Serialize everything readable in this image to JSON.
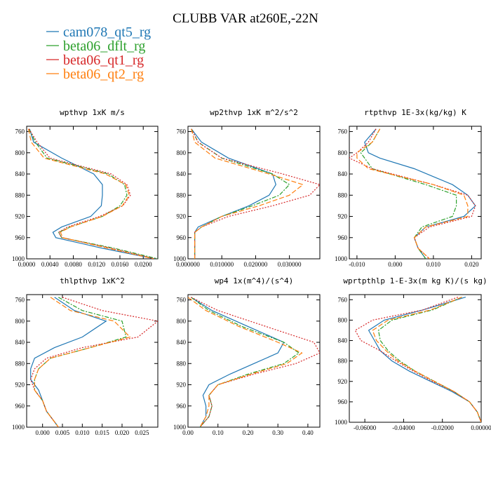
{
  "figure_title": "CLUBB VAR at260E,-22N",
  "colors": {
    "cam078_qt5_rg": "#1f77b4",
    "beta06_dflt_rg": "#2ca02c",
    "beta06_qt1_rg": "#d62728",
    "beta06_qt2_rg": "#ff7f0e"
  },
  "legend": [
    {
      "label": "cam078_qt5_rg",
      "color": "#1f77b4"
    },
    {
      "label": "beta06_dflt_rg",
      "color": "#2ca02c"
    },
    {
      "label": "beta06_qt1_rg",
      "color": "#d62728"
    },
    {
      "label": "beta06_qt2_rg",
      "color": "#ff7f0e"
    }
  ],
  "chart_data": [
    {
      "type": "line",
      "title": "wpthvp  1xK m/s",
      "ylim": [
        1000,
        750
      ],
      "xlim": [
        0,
        0.0225
      ],
      "xticks": [
        "0.0000",
        "0.0040",
        "0.0080",
        "0.0120",
        "0.0160",
        "0.0200"
      ],
      "xtick_values": [
        0,
        0.004,
        0.008,
        0.012,
        0.016,
        0.02
      ],
      "yticks": [
        760,
        800,
        840,
        880,
        920,
        960,
        1000
      ],
      "y": [
        755,
        780,
        810,
        840,
        860,
        880,
        900,
        920,
        940,
        950,
        960,
        980,
        1000
      ],
      "series": [
        {
          "name": "cam078_qt5_rg",
          "values": [
            0.0005,
            0.0012,
            0.006,
            0.0115,
            0.013,
            0.013,
            0.0128,
            0.011,
            0.006,
            0.0045,
            0.005,
            0.013,
            0.022
          ]
        },
        {
          "name": "beta06_dflt_rg",
          "values": [
            0.0004,
            0.0015,
            0.0035,
            0.014,
            0.0168,
            0.0172,
            0.016,
            0.013,
            0.0075,
            0.0055,
            0.006,
            0.015,
            0.0225
          ]
        },
        {
          "name": "beta06_qt1_rg",
          "values": [
            0.0004,
            0.0018,
            0.004,
            0.0145,
            0.0172,
            0.0178,
            0.0165,
            0.0125,
            0.007,
            0.0055,
            0.006,
            0.0145,
            0.022
          ]
        },
        {
          "name": "beta06_qt2_rg",
          "values": [
            0.0003,
            0.0008,
            0.003,
            0.0135,
            0.017,
            0.0176,
            0.0164,
            0.013,
            0.0075,
            0.0058,
            0.0062,
            0.014,
            0.0218
          ]
        }
      ]
    },
    {
      "type": "line",
      "title": "wp2thvp  1xK m^2/s^2",
      "ylim": [
        1000,
        750
      ],
      "xlim": [
        0,
        0.039
      ],
      "xticks": [
        "0.000000",
        "0.010000",
        "0.020000",
        "0.030000"
      ],
      "xtick_values": [
        0,
        0.01,
        0.02,
        0.03
      ],
      "yticks": [
        760,
        800,
        840,
        880,
        920,
        960,
        1000
      ],
      "y": [
        755,
        780,
        810,
        840,
        860,
        880,
        900,
        920,
        940,
        950,
        960,
        980,
        1000
      ],
      "series": [
        {
          "name": "cam078_qt5_rg",
          "values": [
            0.001,
            0.004,
            0.012,
            0.025,
            0.026,
            0.024,
            0.018,
            0.01,
            0.003,
            0.002,
            0.002,
            0.002,
            0.002
          ]
        },
        {
          "name": "beta06_dflt_rg",
          "values": [
            0.001,
            0.003,
            0.01,
            0.025,
            0.03,
            0.027,
            0.019,
            0.01,
            0.004,
            0.002,
            0.002,
            0.002,
            0.002
          ]
        },
        {
          "name": "beta06_qt1_rg",
          "values": [
            0.001,
            0.003,
            0.01,
            0.028,
            0.039,
            0.036,
            0.025,
            0.012,
            0.004,
            0.002,
            0.002,
            0.002,
            0.002
          ]
        },
        {
          "name": "beta06_qt2_rg",
          "values": [
            0.001,
            0.002,
            0.008,
            0.024,
            0.034,
            0.03,
            0.021,
            0.01,
            0.004,
            0.002,
            0.002,
            0.002,
            0.002
          ]
        }
      ]
    },
    {
      "type": "line",
      "title": "rtpthvp  1E-3x(kg/kg) K",
      "ylim": [
        1000,
        750
      ],
      "xlim": [
        -0.012,
        0.0225
      ],
      "xticks": [
        "-0.010",
        "0.000",
        "0.010",
        "0.020"
      ],
      "xtick_values": [
        -0.01,
        0,
        0.01,
        0.02
      ],
      "yticks": [
        760,
        800,
        840,
        880,
        920,
        960,
        1000
      ],
      "y": [
        755,
        780,
        800,
        810,
        830,
        860,
        880,
        900,
        920,
        940,
        960,
        980,
        1000
      ],
      "series": [
        {
          "name": "cam078_qt5_rg",
          "values": [
            -0.005,
            -0.008,
            -0.007,
            -0.004,
            0.005,
            0.015,
            0.019,
            0.021,
            0.018,
            0.008,
            0.005,
            0.006,
            0.008
          ]
        },
        {
          "name": "beta06_dflt_rg",
          "values": [
            -0.004,
            -0.006,
            -0.009,
            -0.008,
            -0.006,
            0.008,
            0.016,
            0.016,
            0.015,
            0.007,
            0.005,
            0.006,
            0.008
          ]
        },
        {
          "name": "beta06_qt1_rg",
          "values": [
            -0.005,
            -0.007,
            -0.01,
            -0.012,
            -0.006,
            0.01,
            0.019,
            0.021,
            0.02,
            0.009,
            0.005,
            0.006,
            0.009
          ]
        },
        {
          "name": "beta06_qt2_rg",
          "values": [
            -0.004,
            -0.006,
            -0.01,
            -0.01,
            -0.007,
            0.01,
            0.018,
            0.019,
            0.019,
            0.008,
            0.005,
            0.006,
            0.009
          ]
        }
      ]
    },
    {
      "type": "line",
      "title": "thlpthvp  1xK^2",
      "ylim": [
        1000,
        750
      ],
      "xlim": [
        -0.004,
        0.029
      ],
      "xticks": [
        "0.000",
        "0.005",
        "0.010",
        "0.015",
        "0.020",
        "0.025"
      ],
      "xtick_values": [
        0,
        0.005,
        0.01,
        0.015,
        0.02,
        0.025
      ],
      "yticks": [
        760,
        800,
        840,
        880,
        920,
        960,
        1000
      ],
      "y": [
        755,
        780,
        800,
        830,
        850,
        870,
        890,
        910,
        930,
        950,
        970,
        990,
        1000
      ],
      "series": [
        {
          "name": "cam078_qt5_rg",
          "values": [
            0.003,
            0.008,
            0.016,
            0.01,
            0.003,
            -0.002,
            -0.003,
            -0.003,
            -0.001,
            0.0,
            0.001,
            0.003,
            0.004
          ]
        },
        {
          "name": "beta06_dflt_rg",
          "values": [
            0.004,
            0.01,
            0.02,
            0.021,
            0.012,
            0.002,
            -0.001,
            -0.002,
            -0.002,
            0.0,
            0.001,
            0.003,
            0.004
          ]
        },
        {
          "name": "beta06_qt1_rg",
          "values": [
            0.005,
            0.015,
            0.029,
            0.024,
            0.01,
            0.001,
            -0.002,
            -0.003,
            -0.002,
            0.0,
            0.001,
            0.003,
            0.004
          ]
        },
        {
          "name": "beta06_qt2_rg",
          "values": [
            0.002,
            0.007,
            0.018,
            0.022,
            0.012,
            0.002,
            -0.001,
            -0.002,
            -0.002,
            0.0,
            0.001,
            0.003,
            0.004
          ]
        }
      ]
    },
    {
      "type": "line",
      "title": "wp4  1x(m^4)/(s^4)",
      "ylim": [
        1000,
        750
      ],
      "xlim": [
        0,
        0.44
      ],
      "xticks": [
        "0.00",
        "0.10",
        "0.20",
        "0.30",
        "0.40"
      ],
      "xtick_values": [
        0,
        0.1,
        0.2,
        0.3,
        0.4
      ],
      "yticks": [
        760,
        800,
        840,
        880,
        920,
        960,
        1000
      ],
      "y": [
        755,
        780,
        810,
        840,
        860,
        880,
        900,
        920,
        940,
        960,
        980,
        1000
      ],
      "series": [
        {
          "name": "cam078_qt5_rg",
          "values": [
            0.01,
            0.08,
            0.2,
            0.32,
            0.3,
            0.22,
            0.14,
            0.07,
            0.05,
            0.06,
            0.06,
            0.04
          ]
        },
        {
          "name": "beta06_dflt_rg",
          "values": [
            0.01,
            0.07,
            0.18,
            0.32,
            0.37,
            0.32,
            0.2,
            0.1,
            0.07,
            0.08,
            0.07,
            0.04
          ]
        },
        {
          "name": "beta06_qt1_rg",
          "values": [
            0.01,
            0.1,
            0.26,
            0.42,
            0.44,
            0.36,
            0.22,
            0.1,
            0.07,
            0.08,
            0.07,
            0.04
          ]
        },
        {
          "name": "beta06_qt2_rg",
          "values": [
            0.0,
            0.06,
            0.17,
            0.3,
            0.38,
            0.33,
            0.21,
            0.1,
            0.07,
            0.07,
            0.06,
            0.04
          ]
        }
      ]
    },
    {
      "type": "line",
      "title": "wprtpthlp  1-E-3x(m kg K)/(s kg)",
      "ylim": [
        1000,
        750
      ],
      "xlim": [
        -0.068,
        0.0
      ],
      "xticks": [
        "-0.06000",
        "-0.04000",
        "-0.02000",
        "0.00000"
      ],
      "xtick_values": [
        -0.06,
        -0.04,
        -0.02,
        0.0
      ],
      "yticks": [
        760,
        800,
        840,
        880,
        920,
        960,
        1000
      ],
      "y": [
        755,
        780,
        800,
        820,
        840,
        860,
        880,
        900,
        920,
        940,
        960,
        980,
        1000
      ],
      "series": [
        {
          "name": "cam078_qt5_rg",
          "values": [
            -0.008,
            -0.03,
            -0.05,
            -0.058,
            -0.055,
            -0.052,
            -0.046,
            -0.037,
            -0.026,
            -0.015,
            -0.006,
            -0.002,
            -0.0
          ]
        },
        {
          "name": "beta06_dflt_rg",
          "values": [
            -0.01,
            -0.025,
            -0.046,
            -0.053,
            -0.052,
            -0.048,
            -0.042,
            -0.034,
            -0.024,
            -0.014,
            -0.006,
            -0.002,
            -0.0
          ]
        },
        {
          "name": "beta06_qt1_rg",
          "values": [
            -0.012,
            -0.03,
            -0.056,
            -0.065,
            -0.062,
            -0.052,
            -0.044,
            -0.035,
            -0.025,
            -0.014,
            -0.006,
            -0.002,
            -0.0
          ]
        },
        {
          "name": "beta06_qt2_rg",
          "values": [
            -0.01,
            -0.026,
            -0.048,
            -0.056,
            -0.054,
            -0.049,
            -0.043,
            -0.034,
            -0.024,
            -0.014,
            -0.006,
            -0.002,
            -0.0
          ]
        }
      ]
    }
  ]
}
